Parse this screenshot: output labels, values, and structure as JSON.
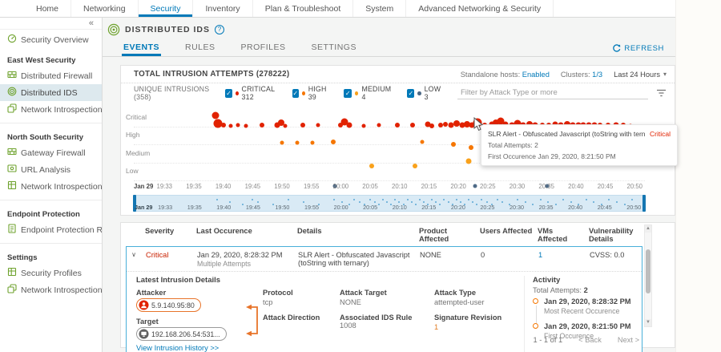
{
  "topnav": {
    "items": [
      "Home",
      "Networking",
      "Security",
      "Inventory",
      "Plan & Troubleshoot",
      "System",
      "Advanced Networking & Security"
    ],
    "active": "Security"
  },
  "sidebar": {
    "collapse_icon": "«",
    "groups": [
      {
        "header": "",
        "items": [
          {
            "label": "Security Overview",
            "icon": "security-overview-icon",
            "selected": false
          }
        ]
      },
      {
        "header": "East West Security",
        "items": [
          {
            "label": "Distributed Firewall",
            "icon": "distributed-firewall-icon",
            "selected": false
          },
          {
            "label": "Distributed IDS",
            "icon": "distributed-ids-icon",
            "selected": true
          },
          {
            "label": "Network Introspection (E-W)",
            "icon": "network-introspection-ew-icon",
            "selected": false
          }
        ]
      },
      {
        "header": "North South Security",
        "items": [
          {
            "label": "Gateway Firewall",
            "icon": "gateway-firewall-icon",
            "selected": false
          },
          {
            "label": "URL Analysis",
            "icon": "url-analysis-icon",
            "selected": false
          },
          {
            "label": "Network Introspection (N-S)",
            "icon": "network-introspection-ns-icon",
            "selected": false
          }
        ]
      },
      {
        "header": "Endpoint Protection",
        "items": [
          {
            "label": "Endpoint Protection Rules",
            "icon": "endpoint-protection-rules-icon",
            "selected": false
          }
        ]
      },
      {
        "header": "Settings",
        "items": [
          {
            "label": "Security Profiles",
            "icon": "security-profiles-icon",
            "selected": false
          },
          {
            "label": "Network Introspection Setti...",
            "icon": "network-introspection-settings-icon",
            "selected": false
          }
        ]
      }
    ]
  },
  "header": {
    "title": "DISTRIBUTED IDS",
    "help": "?"
  },
  "tabs": {
    "items": [
      "EVENTS",
      "RULES",
      "PROFILES",
      "SETTINGS"
    ],
    "active": "EVENTS",
    "refresh_label": "REFRESH"
  },
  "toolbar": {
    "title": "TOTAL INTRUSION ATTEMPTS (278222)",
    "standalone_label": "Standalone hosts:",
    "standalone_value": "Enabled",
    "clusters_label": "Clusters:",
    "clusters_value": "1/3",
    "time_range": "Last 24 Hours"
  },
  "filter": {
    "placeholder": "Filter by Attack Type or more"
  },
  "legend": {
    "unique_label": "UNIQUE INTRUSIONS (358)",
    "items": [
      {
        "label": "CRITICAL",
        "count": "312",
        "color": "#e12200",
        "checked": true
      },
      {
        "label": "HIGH",
        "count": "39",
        "color": "#f57600",
        "checked": true
      },
      {
        "label": "MEDIUM",
        "count": "4",
        "color": "#f9a11b",
        "checked": true
      },
      {
        "label": "LOW",
        "count": "3",
        "color": "#4e6a87",
        "checked": true
      }
    ]
  },
  "chart_data": {
    "type": "scatter",
    "title": "Intrusion attempts over time by severity",
    "lanes": [
      "Critical",
      "High",
      "Medium",
      "Low"
    ],
    "x_axis": [
      "Jan 29",
      "19:33",
      "19:35",
      "19:40",
      "19:45",
      "19:50",
      "19:55",
      "20:00",
      "20:05",
      "20:10",
      "20:15",
      "20:20",
      "20:25",
      "20:30",
      "20:35",
      "20:40",
      "20:45",
      "20:50"
    ],
    "colors": {
      "Critical": "#e12200",
      "High": "#f57600",
      "Medium": "#f9a11b",
      "Low": "#4e6a87",
      "brush": "#5ba7d4"
    },
    "series": {
      "Critical": [
        {
          "x": 16,
          "j": 14,
          "r": 4.5
        },
        {
          "x": 16.4,
          "j": 4,
          "r": 5.5
        },
        {
          "x": 17.6,
          "j": 2,
          "r": 3
        },
        {
          "x": 19,
          "j": 1,
          "r": 2.5
        },
        {
          "x": 20.4,
          "j": 2,
          "r": 2.5
        },
        {
          "x": 22,
          "j": 1,
          "r": 2.5
        },
        {
          "x": 25,
          "j": 2,
          "r": 3
        },
        {
          "x": 28,
          "j": 2,
          "r": 3.5
        },
        {
          "x": 28.8,
          "j": 5,
          "r": 4
        },
        {
          "x": 29.6,
          "j": 1,
          "r": 2.5
        },
        {
          "x": 33,
          "j": 2,
          "r": 3
        },
        {
          "x": 36,
          "j": 2,
          "r": 2.5
        },
        {
          "x": 40.5,
          "j": 2,
          "r": 3
        },
        {
          "x": 41.3,
          "j": 6,
          "r": 4.5
        },
        {
          "x": 42.2,
          "j": 2,
          "r": 3.5
        },
        {
          "x": 45,
          "j": 1,
          "r": 2.5
        },
        {
          "x": 48,
          "j": 2,
          "r": 2.5
        },
        {
          "x": 51.5,
          "j": 2,
          "r": 3
        },
        {
          "x": 54.5,
          "j": 2,
          "r": 3
        },
        {
          "x": 57.5,
          "j": 3,
          "r": 3.5
        },
        {
          "x": 58.3,
          "j": 1,
          "r": 3
        },
        {
          "x": 60,
          "j": 2,
          "r": 3
        },
        {
          "x": 61,
          "j": 3,
          "r": 3
        },
        {
          "x": 62,
          "j": 2,
          "r": 3.5
        },
        {
          "x": 63.2,
          "j": 4,
          "r": 4
        },
        {
          "x": 64.2,
          "j": 2,
          "r": 3.5
        },
        {
          "x": 65.2,
          "j": 3,
          "r": 4
        },
        {
          "x": 66.2,
          "j": 2,
          "r": 3.5
        },
        {
          "x": 67.3,
          "j": 5,
          "r": 5.5,
          "hover": true
        },
        {
          "x": 68.6,
          "j": 2,
          "r": 3
        },
        {
          "x": 70,
          "j": 3,
          "r": 3.5
        },
        {
          "x": 70.9,
          "j": 5,
          "r": 4
        },
        {
          "x": 71.8,
          "j": 7,
          "r": 4.5
        },
        {
          "x": 72.7,
          "j": 3,
          "r": 3.5
        },
        {
          "x": 74,
          "j": 2,
          "r": 3.5
        },
        {
          "x": 75.1,
          "j": 4,
          "r": 4.5
        },
        {
          "x": 76.2,
          "j": 2,
          "r": 3.5
        },
        {
          "x": 77.4,
          "j": 3,
          "r": 4
        },
        {
          "x": 78.6,
          "j": 2,
          "r": 3.5
        },
        {
          "x": 80,
          "j": 2,
          "r": 3
        },
        {
          "x": 81.2,
          "j": 2,
          "r": 3
        },
        {
          "x": 82.4,
          "j": 3,
          "r": 3.5
        },
        {
          "x": 83.6,
          "j": 2,
          "r": 3.5
        },
        {
          "x": 84.8,
          "j": 3,
          "r": 4
        },
        {
          "x": 85.9,
          "j": 2,
          "r": 3.5
        },
        {
          "x": 87,
          "j": 2,
          "r": 3.5
        },
        {
          "x": 88,
          "j": 2,
          "r": 3.5
        },
        {
          "x": 89,
          "j": 2,
          "r": 3.5
        },
        {
          "x": 90.2,
          "j": 2,
          "r": 3.5
        },
        {
          "x": 91.3,
          "j": 2,
          "r": 3
        },
        {
          "x": 92.8,
          "j": 2,
          "r": 3
        },
        {
          "x": 94.3,
          "j": 2,
          "r": 3.5
        },
        {
          "x": 95.8,
          "j": 2,
          "r": 3
        },
        {
          "x": 97.2,
          "j": 1,
          "r": 2.5
        }
      ],
      "High": [
        {
          "x": 29,
          "j": 2,
          "r": 2.5
        },
        {
          "x": 32,
          "j": 2,
          "r": 2.5
        },
        {
          "x": 35,
          "j": 2,
          "r": 2.5
        },
        {
          "x": 39,
          "j": 3,
          "r": 3
        },
        {
          "x": 56.5,
          "j": 3,
          "r": 2.5
        },
        {
          "x": 62.5,
          "j": 0,
          "r": 3
        },
        {
          "x": 66,
          "j": -4,
          "r": 3
        },
        {
          "x": 69,
          "j": -12,
          "r": 3.5
        },
        {
          "x": 70.5,
          "j": 2,
          "r": 2.5
        },
        {
          "x": 74.5,
          "j": 2,
          "r": 2.5
        },
        {
          "x": 75.3,
          "j": 4,
          "r": 3
        },
        {
          "x": 76.2,
          "j": 2,
          "r": 3
        },
        {
          "x": 77.3,
          "j": 5,
          "r": 3
        },
        {
          "x": 78.2,
          "j": 3,
          "r": 3
        },
        {
          "x": 79.3,
          "j": 1,
          "r": 3
        },
        {
          "x": 80.6,
          "j": 3,
          "r": 3
        },
        {
          "x": 81.5,
          "j": 1,
          "r": 2.5
        },
        {
          "x": 95.5,
          "j": 2,
          "r": 2.5
        },
        {
          "x": 97.5,
          "j": 2,
          "r": 2.5
        },
        {
          "x": 99.5,
          "j": 2,
          "r": 2.5
        }
      ],
      "Medium": [
        {
          "x": 46.5,
          "j": -4,
          "r": 3
        },
        {
          "x": 55,
          "j": -4,
          "r": 3
        },
        {
          "x": 65.5,
          "j": 2,
          "r": 3.5
        },
        {
          "x": 82,
          "j": 12,
          "r": 2.5
        }
      ],
      "Low": [
        {
          "x": 39.4,
          "j": -7,
          "r": 2.5
        },
        {
          "x": 66.8,
          "j": -7,
          "r": 2.5
        },
        {
          "x": 80.8,
          "j": -7,
          "r": 2.5
        }
      ]
    },
    "brush_points": [
      16,
      18.5,
      21,
      23,
      24,
      27,
      30,
      33,
      36,
      39,
      40.5,
      42,
      43,
      44,
      45,
      46,
      47,
      47.8,
      48.6,
      49.4,
      50.2,
      51,
      51.8,
      52.6,
      53.4,
      54.2,
      55,
      55.8,
      56.6,
      57.4,
      58.2,
      59,
      59.8,
      60.6,
      61.4,
      62.2,
      63,
      63.8,
      64.6,
      65.4,
      66.2,
      67,
      68,
      69,
      70,
      71,
      72,
      73.5,
      75,
      76.5,
      78,
      79.5,
      81,
      82.5,
      84,
      85.5,
      87,
      88.5,
      90,
      91.5,
      93,
      94.5,
      96,
      97.5
    ]
  },
  "tooltip": {
    "title": "SLR Alert - Obfuscated Javascript (toString with ternary)",
    "severity": "Critical",
    "attempts": "Total Attempts: 2",
    "first_occurrence": "First Occurence Jan 29, 2020, 8:21:50 PM"
  },
  "table": {
    "headers": [
      "Severity",
      "Last Occurence",
      "Details",
      "Product Affected",
      "Users Affected",
      "VMs Affected",
      "Vulnerability Details"
    ],
    "row": {
      "expand_icon": "∨",
      "severity": "Critical",
      "last_occurrence": "Jan 29, 2020, 8:28:32 PM",
      "last_occurrence_sub": "Multiple Attempts",
      "details": "SLR Alert - Obfuscated Javascript (toString with ternary)",
      "product_affected": "NONE",
      "users_affected": "0",
      "vms_affected": "1",
      "vulnerability_details": "CVSS:  0.0"
    }
  },
  "detail": {
    "section_title": "Latest Intrusion Details",
    "attacker_label": "Attacker",
    "attacker_value": "5.9.140.95:80",
    "target_label": "Target",
    "target_value": "192.168.206.54:531...",
    "field_rows": [
      [
        {
          "label": "Protocol",
          "value": "tcp",
          "style": "plain"
        },
        {
          "label": "Attack Target",
          "value": "NONE",
          "style": "plain"
        },
        {
          "label": "Attack Type",
          "value": "attempted-user",
          "style": "plain"
        }
      ],
      [
        {
          "label": "Attack Direction",
          "value": "",
          "style": "plain"
        },
        {
          "label": "Associated IDS Rule",
          "value": "1008",
          "style": "link"
        },
        {
          "label": "Signature Revision",
          "value": "1",
          "style": "orange"
        }
      ]
    ],
    "history_link": "View Intrusion History >>",
    "activity": {
      "title": "Activity",
      "total_label": "Total Attempts:",
      "total_value": "2",
      "events": [
        {
          "date": "Jan 29, 2020, 8:28:32 PM",
          "label": "Most Recent Occurence"
        },
        {
          "date": "Jan 29, 2020, 8:21:50 PM",
          "label": "First Occurence"
        }
      ]
    }
  },
  "pagination": {
    "range": "1 - 1 of 1",
    "back": "Back",
    "next": "Next"
  }
}
